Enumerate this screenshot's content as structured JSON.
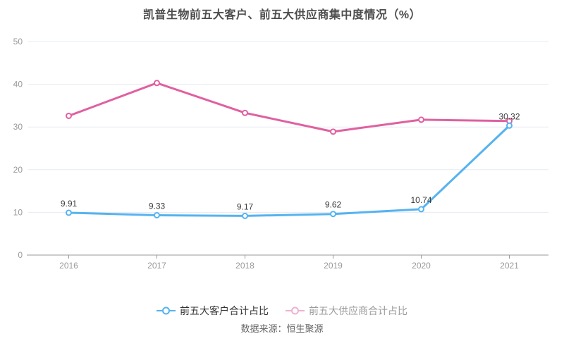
{
  "title": "凯普生物前五大客户、前五大供应商集中度情况（%）",
  "source_label": "数据来源：恒生聚源",
  "legend": {
    "items": [
      {
        "label": "前五大客户合计占比",
        "marker_color": "#56b3ef",
        "text_color": "#333333"
      },
      {
        "label": "前五大供应商合计占比",
        "marker_color": "#f0b0d0",
        "text_color": "#9b9b9b"
      }
    ]
  },
  "chart_data": {
    "type": "line",
    "title": "凯普生物前五大客户、前五大供应商集中度情况（%）",
    "categories": [
      "2016",
      "2017",
      "2018",
      "2019",
      "2020",
      "2021"
    ],
    "series": [
      {
        "name": "前五大客户合计占比",
        "color": "#56b3ef",
        "values": [
          9.91,
          9.33,
          9.17,
          9.62,
          10.74,
          30.32
        ],
        "data_labels": [
          "9.91",
          "9.33",
          "9.17",
          "9.62",
          "10.74",
          "30.32"
        ],
        "show_labels": true
      },
      {
        "name": "前五大供应商合计占比",
        "color": "#e060a0",
        "values": [
          32.6,
          40.3,
          33.3,
          28.9,
          31.7,
          31.4
        ],
        "show_labels": false
      }
    ],
    "xlabel": "",
    "ylabel": "",
    "ylim": [
      0,
      50
    ],
    "yticks": [
      0,
      10,
      20,
      30,
      40,
      50
    ],
    "grid": true,
    "legend_position": "bottom",
    "source": "数据来源：恒生聚源"
  }
}
